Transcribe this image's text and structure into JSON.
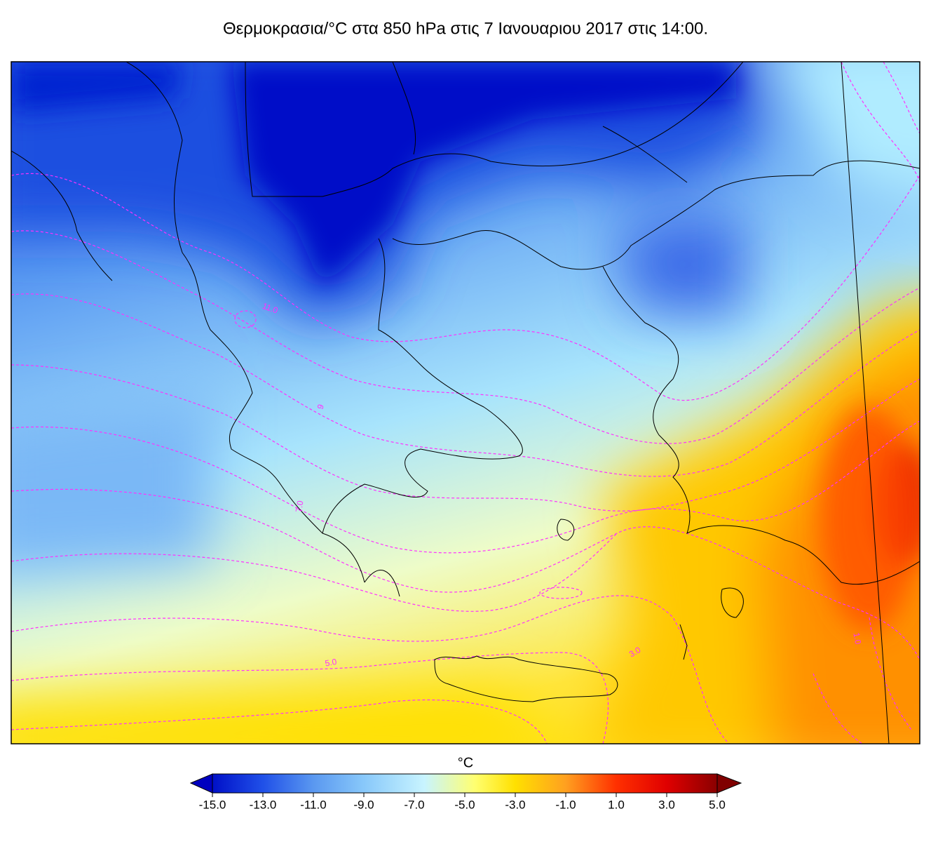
{
  "title": "Θερμοκρασια/°C στα 850 hPa στις 7 Ιανουαριου 2017 στις 14:00.",
  "map": {
    "contour_labels": [
      "11.0",
      "9",
      "7.0",
      "5.0",
      "3.0",
      "1.0"
    ]
  },
  "colorbar": {
    "label": "°C",
    "ticks": [
      "-15.0",
      "-13.0",
      "-11.0",
      "-9.0",
      "-7.0",
      "-5.0",
      "-3.0",
      "-1.0",
      "1.0",
      "3.0",
      "5.0"
    ]
  }
}
